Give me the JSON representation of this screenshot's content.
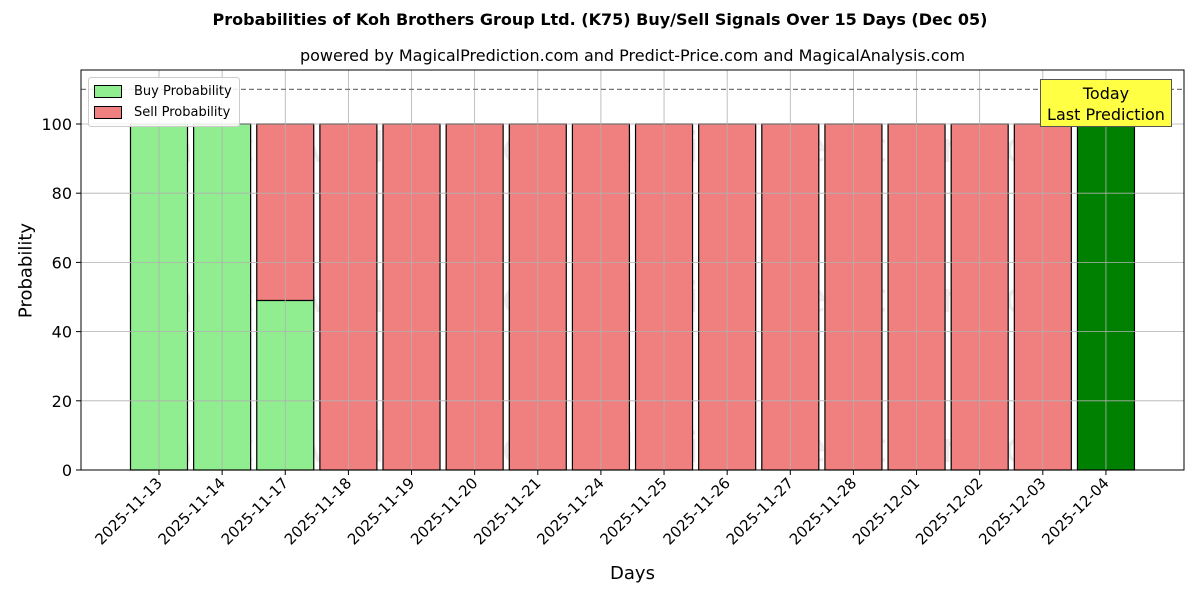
{
  "chart_data": {
    "type": "bar",
    "stacked": true,
    "title": "Probabilities of Koh Brothers Group Ltd. (K75) Buy/Sell Signals Over 15 Days (Dec 05)",
    "subtitle": "powered by MagicalPrediction.com and Predict-Price.com and MagicalAnalysis.com",
    "xlabel": "Days",
    "ylabel": "Probability",
    "ylim": [
      0,
      115
    ],
    "yticks": [
      0,
      20,
      40,
      60,
      80,
      100
    ],
    "reference_line": 110,
    "grid": true,
    "legend_position": "upper left",
    "categories": [
      "2025-11-13",
      "2025-11-14",
      "2025-11-17",
      "2025-11-18",
      "2025-11-19",
      "2025-11-20",
      "2025-11-21",
      "2025-11-24",
      "2025-11-25",
      "2025-11-26",
      "2025-11-27",
      "2025-11-28",
      "2025-12-01",
      "2025-12-02",
      "2025-12-03",
      "2025-12-04"
    ],
    "series": [
      {
        "name": "Buy Probability",
        "color": "#90ee90",
        "values": [
          100,
          100,
          49,
          0,
          0,
          0,
          0,
          0,
          0,
          0,
          0,
          0,
          0,
          0,
          0,
          100
        ]
      },
      {
        "name": "Sell Probability",
        "color": "#f08080",
        "values": [
          0,
          0,
          51,
          100,
          100,
          100,
          100,
          100,
          100,
          100,
          100,
          100,
          100,
          100,
          100,
          0
        ]
      }
    ],
    "today_bar_color": "#008000",
    "annotation": "Today\nLast Prediction",
    "watermarks": [
      "MagicalAnalysis.com",
      "MagicalPrediction.com"
    ]
  },
  "legend": {
    "buy": "Buy Probability",
    "sell": "Sell Probability"
  },
  "annotation": {
    "line1": "Today",
    "line2": "Last Prediction"
  }
}
